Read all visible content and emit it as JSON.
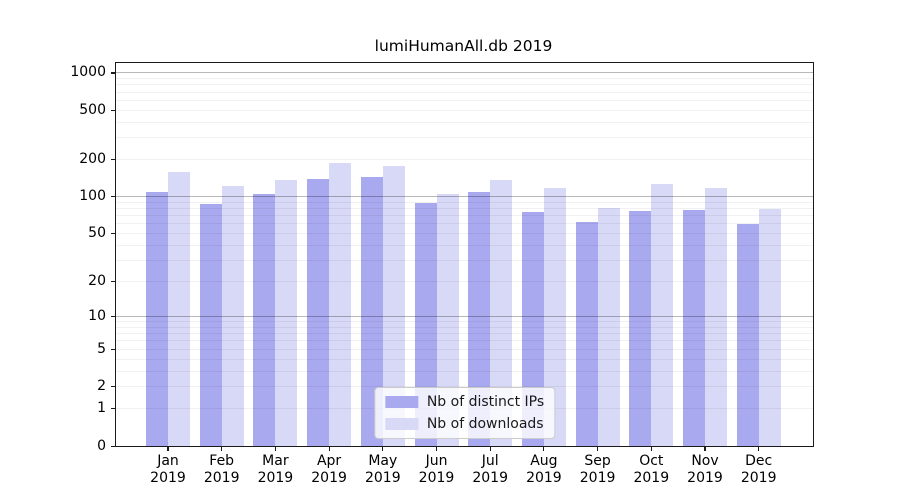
{
  "title": "lumiHumanAll.db 2019",
  "legend": {
    "items": [
      {
        "label": "Nb of distinct IPs",
        "color": "#a9a9ef"
      },
      {
        "label": "Nb of downloads",
        "color": "#d8d8f7"
      }
    ]
  },
  "y_axis": {
    "scale": "log1p",
    "ymax": 1200,
    "tick_values": [
      1000,
      500,
      200,
      100,
      50,
      20,
      10,
      5,
      2,
      1,
      0
    ],
    "tick_labels": [
      "1000",
      "500",
      "200",
      "100",
      "50",
      "20",
      "10",
      "5",
      "2",
      "1",
      "0"
    ],
    "major_gridlines": [
      10,
      100,
      1000
    ],
    "minor_gridlines": [
      1,
      2,
      3,
      4,
      5,
      6,
      7,
      8,
      9,
      20,
      30,
      40,
      50,
      60,
      70,
      80,
      90,
      200,
      300,
      400,
      500,
      600,
      700,
      800,
      900
    ]
  },
  "x_axis": {
    "months": [
      "Jan",
      "Feb",
      "Mar",
      "Apr",
      "May",
      "Jun",
      "Jul",
      "Aug",
      "Sep",
      "Oct",
      "Nov",
      "Dec"
    ],
    "year": "2019"
  },
  "chart_data": {
    "type": "bar",
    "title": "lumiHumanAll.db 2019",
    "categories": [
      "Jan 2019",
      "Feb 2019",
      "Mar 2019",
      "Apr 2019",
      "May 2019",
      "Jun 2019",
      "Jul 2019",
      "Aug 2019",
      "Sep 2019",
      "Oct 2019",
      "Nov 2019",
      "Dec 2019"
    ],
    "series": [
      {
        "name": "Nb of distinct IPs",
        "color": "#a9a9ef",
        "values": [
          109,
          87,
          105,
          140,
          145,
          89,
          110,
          75,
          62,
          77,
          78,
          60
        ]
      },
      {
        "name": "Nb of downloads",
        "color": "#d8d8f7",
        "values": [
          158,
          122,
          137,
          189,
          179,
          106,
          136,
          117,
          81,
          127,
          118,
          80
        ]
      }
    ],
    "yscale": "log1p",
    "ylim": [
      0,
      1200
    ],
    "yticks": [
      0,
      1,
      2,
      5,
      10,
      20,
      50,
      100,
      200,
      500,
      1000
    ],
    "xlabel": "",
    "ylabel": "",
    "grid": true,
    "legend_position": "lower center"
  }
}
